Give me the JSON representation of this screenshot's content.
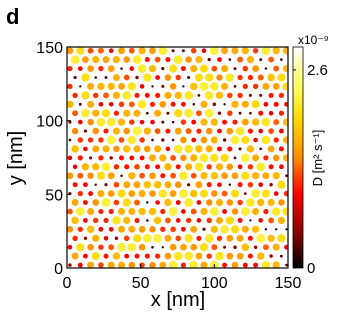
{
  "panel_label": "d",
  "chart_data": {
    "type": "scatter",
    "title": "",
    "xlabel": "x [nm]",
    "ylabel": "y [nm]",
    "xlim": [
      0,
      150
    ],
    "ylim": [
      0,
      150
    ],
    "x_ticks": [
      "0",
      "50",
      "100",
      "150"
    ],
    "y_ticks": [
      "0",
      "50",
      "100",
      "150"
    ],
    "grid": false,
    "point_pattern": "hexagonal lattice of diffusion sites; marker size and color encode D",
    "lattice_spacing_nm": 7.0,
    "colorbar": {
      "label": "D [m² s⁻¹]",
      "exponent": "x10⁻⁹",
      "ticks": [
        "2.6",
        "0"
      ],
      "tick_values": [
        2.6,
        0
      ],
      "range": [
        0,
        2.9
      ],
      "colormap": "hot",
      "colors": [
        "#000000",
        "#8b0000",
        "#ff0000",
        "#ff8c00",
        "#ffd700",
        "#ffff66",
        "#ffffff"
      ]
    }
  }
}
